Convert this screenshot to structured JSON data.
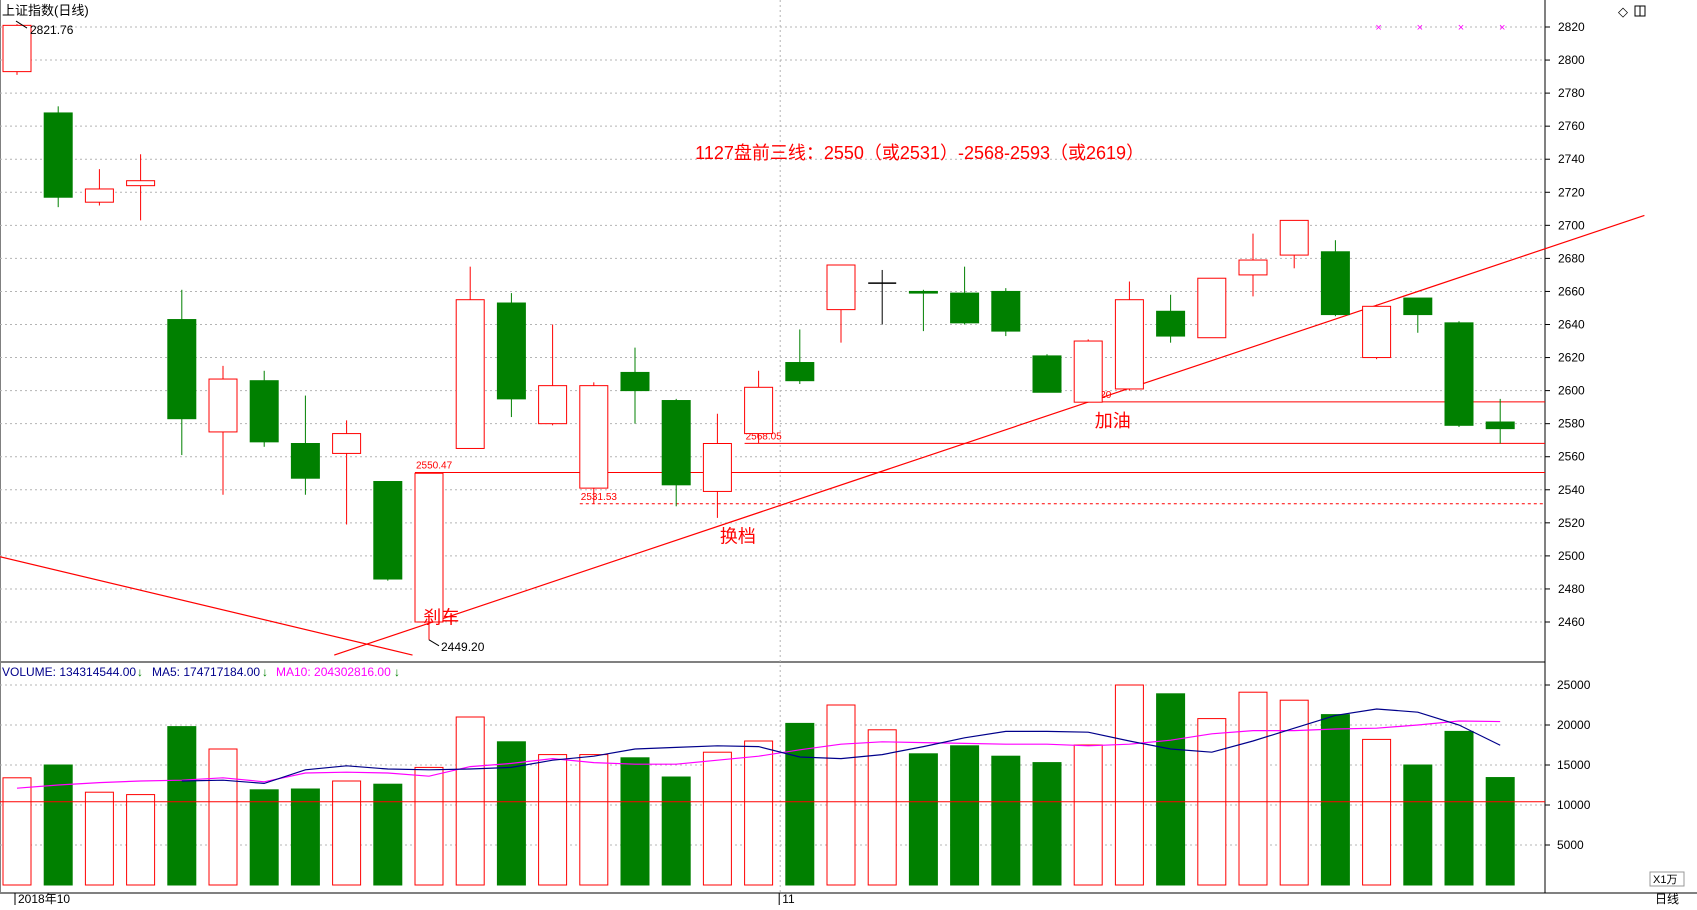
{
  "window": {
    "title": "上证指数(日线)",
    "corner_icons": [
      "diamond-icon",
      "window-restore-icon"
    ],
    "period_label": "日线",
    "vol_unit_label": "X1万"
  },
  "colors": {
    "up": "#ff0000",
    "down": "#008000",
    "text_red": "#ff0000",
    "vol_label": "#00008b",
    "ma5": "#00008b",
    "ma10": "#ff00ff",
    "axis": "#000000",
    "grid": "#b4b4b4"
  },
  "chart_data": {
    "type": "candlestick",
    "price_axis": {
      "ylim": [
        2440,
        2830
      ],
      "ticks": [
        2460,
        2480,
        2500,
        2520,
        2540,
        2560,
        2580,
        2600,
        2620,
        2640,
        2660,
        2680,
        2700,
        2720,
        2740,
        2760,
        2780,
        2800,
        2820
      ]
    },
    "volume_axis": {
      "ylim": [
        0,
        27000
      ],
      "ticks": [
        5000,
        10000,
        15000,
        20000,
        25000
      ]
    },
    "x_labels": [
      {
        "index": 0,
        "text": "2018年10"
      },
      {
        "index": 19,
        "text": "11"
      }
    ],
    "candles": [
      {
        "o": 2793,
        "h": 2821.76,
        "l": 2791,
        "c": 2821
      },
      {
        "o": 2768,
        "h": 2772,
        "l": 2711,
        "c": 2717
      },
      {
        "o": 2714,
        "h": 2734,
        "l": 2712,
        "c": 2722
      },
      {
        "o": 2724,
        "h": 2743,
        "l": 2703,
        "c": 2727
      },
      {
        "o": 2643,
        "h": 2661,
        "l": 2561,
        "c": 2583
      },
      {
        "o": 2575,
        "h": 2615,
        "l": 2537,
        "c": 2607
      },
      {
        "o": 2606,
        "h": 2612,
        "l": 2566,
        "c": 2569
      },
      {
        "o": 2568,
        "h": 2597,
        "l": 2537,
        "c": 2547
      },
      {
        "o": 2562,
        "h": 2582,
        "l": 2519,
        "c": 2574
      },
      {
        "o": 2545,
        "h": 2545,
        "l": 2485,
        "c": 2486
      },
      {
        "o": 2460,
        "h": 2550.47,
        "l": 2449.2,
        "c": 2550
      },
      {
        "o": 2565,
        "h": 2675,
        "l": 2565,
        "c": 2655
      },
      {
        "o": 2653,
        "h": 2659,
        "l": 2584,
        "c": 2595
      },
      {
        "o": 2580,
        "h": 2640,
        "l": 2579,
        "c": 2603
      },
      {
        "o": 2541,
        "h": 2605,
        "l": 2531.53,
        "c": 2603
      },
      {
        "o": 2611,
        "h": 2626,
        "l": 2580,
        "c": 2600
      },
      {
        "o": 2594,
        "h": 2595,
        "l": 2530,
        "c": 2543
      },
      {
        "o": 2539,
        "h": 2586,
        "l": 2523,
        "c": 2568
      },
      {
        "o": 2574,
        "h": 2612,
        "l": 2568.05,
        "c": 2602
      },
      {
        "o": 2617,
        "h": 2637,
        "l": 2604,
        "c": 2606
      },
      {
        "o": 2649,
        "h": 2676,
        "l": 2629,
        "c": 2676
      },
      {
        "o": 2665,
        "h": 2673,
        "l": 2640,
        "c": 2665
      },
      {
        "o": 2660,
        "h": 2661,
        "l": 2636,
        "c": 2659
      },
      {
        "o": 2659,
        "h": 2675,
        "l": 2640,
        "c": 2641
      },
      {
        "o": 2660,
        "h": 2662,
        "l": 2633,
        "c": 2636
      },
      {
        "o": 2621,
        "h": 2622,
        "l": 2599,
        "c": 2599
      },
      {
        "o": 2593,
        "h": 2631,
        "l": 2593.2,
        "c": 2630
      },
      {
        "o": 2601,
        "h": 2666,
        "l": 2600,
        "c": 2655
      },
      {
        "o": 2648,
        "h": 2658,
        "l": 2629,
        "c": 2633
      },
      {
        "o": 2632,
        "h": 2668,
        "l": 2632,
        "c": 2668
      },
      {
        "o": 2670,
        "h": 2695,
        "l": 2657,
        "c": 2679
      },
      {
        "o": 2682,
        "h": 2703,
        "l": 2674,
        "c": 2703
      },
      {
        "o": 2684,
        "h": 2691,
        "l": 2645,
        "c": 2646
      },
      {
        "o": 2620,
        "h": 2652,
        "l": 2619,
        "c": 2651
      },
      {
        "o": 2656,
        "h": 2656,
        "l": 2635,
        "c": 2646
      },
      {
        "o": 2641,
        "h": 2642,
        "l": 2578,
        "c": 2579
      },
      {
        "o": 2581,
        "h": 2595,
        "l": 2568,
        "c": 2577
      }
    ],
    "volumes": [
      13400,
      15000,
      11600,
      11300,
      19800,
      17000,
      11900,
      12000,
      13000,
      12600,
      14700,
      21000,
      17900,
      16300,
      16300,
      15900,
      13500,
      16600,
      18000,
      20200,
      22500,
      19400,
      16400,
      17400,
      16100,
      15300,
      17500,
      25000,
      23900,
      20800,
      24100,
      23100,
      21300,
      18200,
      15000,
      19200,
      13431.4544
    ],
    "ma5": [
      null,
      null,
      null,
      null,
      13000,
      13100,
      12700,
      14400,
      14900,
      14500,
      14400,
      14500,
      14700,
      15600,
      16100,
      17000,
      17200,
      17400,
      17300,
      16000,
      15800,
      16300,
      17300,
      18400,
      19200,
      19200,
      19100,
      18000,
      17000,
      16600,
      18000,
      19600,
      21200,
      22000,
      21600,
      20000,
      17471.7184
    ],
    "ma10": [
      12100,
      12500,
      12800,
      13000,
      13100,
      13400,
      12900,
      14000,
      14100,
      14000,
      13600,
      14800,
      15200,
      15800,
      15300,
      15100,
      15100,
      15600,
      16100,
      16900,
      17600,
      17900,
      17800,
      17700,
      17600,
      17600,
      17400,
      17600,
      18100,
      18900,
      19300,
      19300,
      19500,
      19600,
      20000,
      20500,
      20430.2816
    ],
    "horizontal_lines": [
      {
        "price": 2593.2,
        "label": "2593.20",
        "style": "solid"
      },
      {
        "price": 2568.05,
        "label": "2568.05",
        "style": "solid"
      },
      {
        "price": 2550.47,
        "label": "2550.47",
        "style": "solid"
      },
      {
        "price": 2531.53,
        "label": "2531.53",
        "style": "dashed"
      }
    ],
    "trendlines": [
      {
        "from": {
          "index": -0.5,
          "price": 2500
        },
        "to": {
          "index": 9.6,
          "price": 2440
        }
      },
      {
        "from": {
          "index": 7.7,
          "price": 2440
        },
        "to": {
          "index": 39.5,
          "price": 2706
        }
      }
    ],
    "volume_ref_line": 10400,
    "extreme_labels": [
      {
        "index": 0,
        "price": 2821.76,
        "text": "2821.76"
      },
      {
        "index": 10,
        "price": 2449.2,
        "text": "2449.20"
      }
    ],
    "annotations": [
      {
        "text": "1127盘前三线：2550（或2531）-2568-2593（或2619）",
        "index": 16.8,
        "price": 2740,
        "size": 18
      },
      {
        "text": "刹车",
        "index": 10.2,
        "price": 2459,
        "size": 18
      },
      {
        "text": "换档",
        "index": 17.4,
        "price": 2508,
        "size": 18
      },
      {
        "text": "加油",
        "index": 26.5,
        "price": 2578,
        "size": 18
      }
    ],
    "top_markers": [
      33,
      34,
      35,
      36
    ],
    "indicators": {
      "volume": {
        "label": "VOLUME:",
        "value": "134314544.00"
      },
      "ma5": {
        "label": "MA5:",
        "value": "174717184.00"
      },
      "ma10": {
        "label": "MA10:",
        "value": "204302816.00"
      }
    }
  }
}
